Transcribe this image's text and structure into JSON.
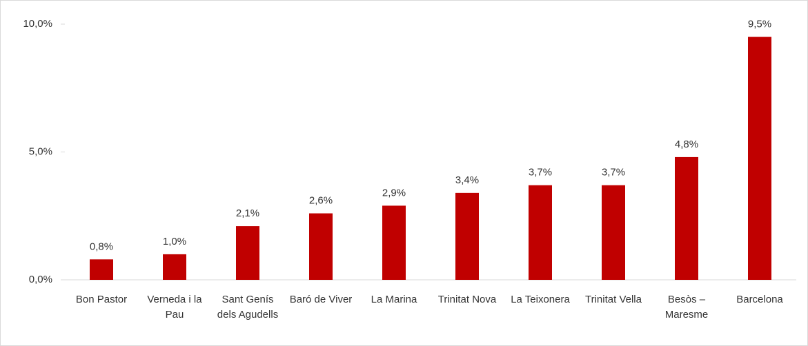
{
  "chart_data": {
    "type": "bar",
    "categories": [
      "Bon Pastor",
      "Verneda i la Pau",
      "Sant Genís dels Agudells",
      "Baró de Viver",
      "La Marina",
      "Trinitat Nova",
      "La Teixonera",
      "Trinitat Vella",
      "Besòs – Maresme",
      "Barcelona"
    ],
    "values": [
      0.8,
      1.0,
      2.1,
      2.6,
      2.9,
      3.4,
      3.7,
      3.7,
      4.8,
      9.5
    ],
    "value_labels": [
      "0,8%",
      "1,0%",
      "2,1%",
      "2,6%",
      "2,9%",
      "3,4%",
      "3,7%",
      "3,7%",
      "4,8%",
      "9,5%"
    ],
    "color": "#c00000",
    "ylim": [
      0,
      10
    ],
    "yticks": [
      {
        "value": 0,
        "label": "0,0%"
      },
      {
        "value": 5,
        "label": "5,0%"
      },
      {
        "value": 10,
        "label": "10,0%"
      }
    ],
    "grid": false
  }
}
